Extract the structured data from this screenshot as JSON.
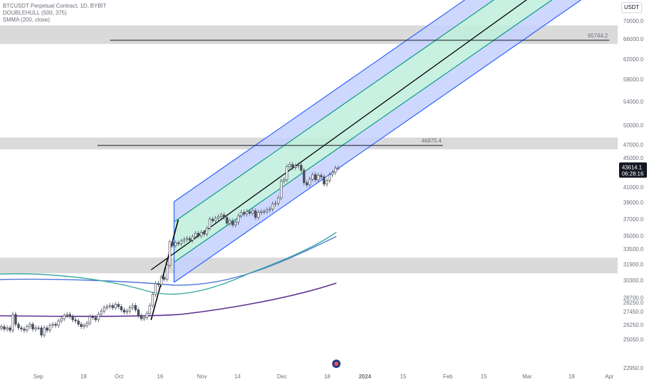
{
  "legend": {
    "symbol_line": "BTCUSDT Perpetual Contract, 1D, BYBIT",
    "indicator_1": "DOUBLEHULL (500, 375)",
    "indicator_2": "SMMA (200, close)"
  },
  "currency": "USDT",
  "price_badge": {
    "price": "43614.1",
    "countdown": "06:28:16"
  },
  "colors": {
    "up": "#26a69a",
    "down": "#ef5350",
    "candle": "#4a4f5c",
    "channel_outer_fill": "#c5d1ff",
    "channel_inner_fill": "#bfeedd",
    "channel_blue_line": "#2962ff",
    "channel_green_line": "#089981",
    "midline": "#000000",
    "zone_fill": "#d6d6d6",
    "hull_blue": "#4a74d8",
    "hull_teal": "#3aa9a0",
    "smma": "#5b2c91",
    "badge_bg": "#131722"
  },
  "chart_data": {
    "type": "candlestick",
    "title": "BTCUSDT Perpetual Contract, 1D, BYBIT",
    "y_ticks": [
      22950,
      25050,
      26250,
      27450,
      28250,
      28700,
      30300,
      31900,
      33500,
      35000,
      37000,
      39000,
      41000,
      43614.1,
      45000,
      47000,
      50000,
      54000,
      58000,
      62000,
      66000,
      70000
    ],
    "y_tick_labels": [
      "22950.0",
      "25050.0",
      "26250.0",
      "27450.0",
      "28250.0",
      "28700.0",
      "30300.0",
      "31900.0",
      "33500.0",
      "35000.0",
      "37000.0",
      "39000.0",
      "41000.0",
      "",
      "45000.0",
      "47000.0",
      "50000.0",
      "54000.0",
      "58000.0",
      "62000.0",
      "66000.0",
      "70000.0"
    ],
    "x_ticks": [
      "Sep",
      "18",
      "Oct",
      "16",
      "Nov",
      "14",
      "Dec",
      "18",
      "2024",
      "15",
      "Feb",
      "15",
      "Mar",
      "18",
      "Apr"
    ],
    "horizontal_levels": [
      {
        "label": "65744.2",
        "value": 65744.2
      },
      {
        "label": "46875.4",
        "value": 46875.4
      }
    ],
    "zones": [
      {
        "from": 65000,
        "to": 69000
      },
      {
        "from": 46300,
        "to": 48100
      },
      {
        "from": 31000,
        "to": 32600
      }
    ],
    "last_price": 43614.1,
    "series": [
      {
        "type": "candles",
        "first_date": "Aug 28",
        "last_date": "Dec 26",
        "close_path": [
          26100,
          25900,
          26000,
          25800,
          27200,
          26300,
          26000,
          25900,
          25800,
          26100,
          26300,
          25900,
          26000,
          26000,
          25400,
          26000,
          25800,
          26200,
          26300,
          26200,
          26600,
          26800,
          27100,
          27200,
          27000,
          26700,
          26600,
          26300,
          26100,
          26200,
          26400,
          27000,
          26900,
          26700,
          27200,
          27500,
          27800,
          27900,
          28000,
          27800,
          28100,
          27900,
          27600,
          27400,
          27500,
          27800,
          28000,
          27600,
          27100,
          26800,
          26900,
          27300,
          28000,
          29000,
          30000,
          29900,
          30600,
          30400,
          31800,
          34300,
          33900,
          34200,
          34100,
          34400,
          34600,
          34700,
          34500,
          34900,
          35300,
          35000,
          35400,
          35200,
          35900,
          37000,
          36800,
          37100,
          37300,
          37500,
          37200,
          36500,
          36800,
          36300,
          36600,
          37400,
          37800,
          37600,
          37900,
          37700,
          38000,
          37200,
          37800,
          37900,
          37900,
          38100,
          38200,
          38800,
          38900,
          39600,
          41800,
          42000,
          43800,
          44100,
          43700,
          43900,
          44000,
          43300,
          41600,
          41300,
          42100,
          42700,
          42000,
          42600,
          42400,
          41400,
          41900,
          42700,
          43000,
          43600,
          43614.1
        ]
      },
      {
        "type": "line",
        "name": "DOUBLEHULL fast",
        "color": "hull_teal"
      },
      {
        "type": "line",
        "name": "DOUBLEHULL slow",
        "color": "hull_blue"
      },
      {
        "type": "line",
        "name": "SMMA (200, close)",
        "color": "smma"
      }
    ],
    "channel": {
      "start_date": "Oct 20",
      "start_mid": 33200,
      "slope_note": "regression channel extending to Apr"
    },
    "grid": false,
    "legend_position": "top-left"
  }
}
